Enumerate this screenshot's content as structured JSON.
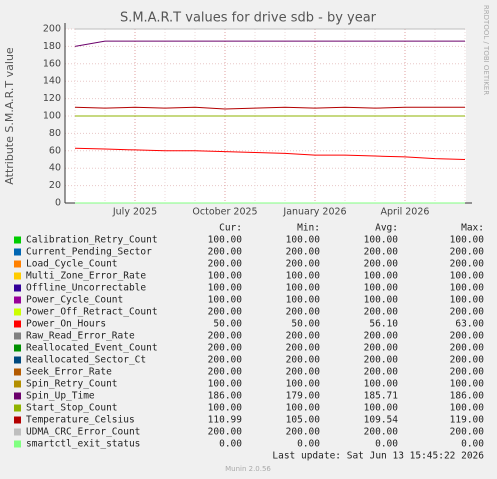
{
  "chart_data": {
    "type": "line",
    "title": "S.M.A.R.T values for drive sdb - by year",
    "y_label": "Attribute S.M.A.R.T value",
    "watermark": "RRDTOOL / TOBI OETIKER",
    "categories": [
      null,
      null,
      "July 2025",
      null,
      null,
      "October 2025",
      null,
      null,
      "January 2026",
      null,
      null,
      "April 2026",
      null,
      null
    ],
    "ylim": [
      0,
      200
    ],
    "yticks": [
      0,
      20,
      40,
      60,
      80,
      100,
      120,
      140,
      160,
      180,
      200
    ],
    "grid": true,
    "stat_headers": [
      "Cur:",
      "Min:",
      "Avg:",
      "Max:"
    ],
    "series": [
      {
        "name": "Calibration_Retry_Count",
        "color": "#00cc00",
        "values": [
          100,
          100,
          100,
          100,
          100,
          100,
          100,
          100,
          100,
          100,
          100,
          100,
          100,
          100
        ],
        "stats": [
          "100.00",
          "100.00",
          "100.00",
          "100.00"
        ]
      },
      {
        "name": "Current_Pending_Sector",
        "color": "#0066b3",
        "values": [
          200,
          200,
          200,
          200,
          200,
          200,
          200,
          200,
          200,
          200,
          200,
          200,
          200,
          200
        ],
        "stats": [
          "200.00",
          "200.00",
          "200.00",
          "200.00"
        ]
      },
      {
        "name": "Load_Cycle_Count",
        "color": "#ff8000",
        "values": [
          200,
          200,
          200,
          200,
          200,
          200,
          200,
          200,
          200,
          200,
          200,
          200,
          200,
          200
        ],
        "stats": [
          "200.00",
          "200.00",
          "200.00",
          "200.00"
        ]
      },
      {
        "name": "Multi_Zone_Error_Rate",
        "color": "#ffcc00",
        "values": [
          100,
          100,
          100,
          100,
          100,
          100,
          100,
          100,
          100,
          100,
          100,
          100,
          100,
          100
        ],
        "stats": [
          "100.00",
          "100.00",
          "100.00",
          "100.00"
        ]
      },
      {
        "name": "Offline_Uncorrectable",
        "color": "#330099",
        "values": [
          100,
          100,
          100,
          100,
          100,
          100,
          100,
          100,
          100,
          100,
          100,
          100,
          100,
          100
        ],
        "stats": [
          "100.00",
          "100.00",
          "100.00",
          "100.00"
        ]
      },
      {
        "name": "Power_Cycle_Count",
        "color": "#990099",
        "values": [
          100,
          100,
          100,
          100,
          100,
          100,
          100,
          100,
          100,
          100,
          100,
          100,
          100,
          100
        ],
        "stats": [
          "100.00",
          "100.00",
          "100.00",
          "100.00"
        ]
      },
      {
        "name": "Power_Off_Retract_Count",
        "color": "#ccff00",
        "values": [
          200,
          200,
          200,
          200,
          200,
          200,
          200,
          200,
          200,
          200,
          200,
          200,
          200,
          200
        ],
        "stats": [
          "200.00",
          "200.00",
          "200.00",
          "200.00"
        ]
      },
      {
        "name": "Power_On_Hours",
        "color": "#ff0000",
        "values": [
          63,
          62,
          61,
          60,
          60,
          59,
          58,
          57,
          55,
          55,
          54,
          53,
          51,
          50
        ],
        "stats": [
          "50.00",
          "50.00",
          "56.10",
          "63.00"
        ]
      },
      {
        "name": "Raw_Read_Error_Rate",
        "color": "#808080",
        "values": [
          200,
          200,
          200,
          200,
          200,
          200,
          200,
          200,
          200,
          200,
          200,
          200,
          200,
          200
        ],
        "stats": [
          "200.00",
          "200.00",
          "200.00",
          "200.00"
        ]
      },
      {
        "name": "Reallocated_Event_Count",
        "color": "#008f00",
        "values": [
          200,
          200,
          200,
          200,
          200,
          200,
          200,
          200,
          200,
          200,
          200,
          200,
          200,
          200
        ],
        "stats": [
          "200.00",
          "200.00",
          "200.00",
          "200.00"
        ]
      },
      {
        "name": "Reallocated_Sector_Ct",
        "color": "#00487d",
        "values": [
          200,
          200,
          200,
          200,
          200,
          200,
          200,
          200,
          200,
          200,
          200,
          200,
          200,
          200
        ],
        "stats": [
          "200.00",
          "200.00",
          "200.00",
          "200.00"
        ]
      },
      {
        "name": "Seek_Error_Rate",
        "color": "#b35a00",
        "values": [
          200,
          200,
          200,
          200,
          200,
          200,
          200,
          200,
          200,
          200,
          200,
          200,
          200,
          200
        ],
        "stats": [
          "200.00",
          "200.00",
          "200.00",
          "200.00"
        ]
      },
      {
        "name": "Spin_Retry_Count",
        "color": "#b38f00",
        "values": [
          100,
          100,
          100,
          100,
          100,
          100,
          100,
          100,
          100,
          100,
          100,
          100,
          100,
          100
        ],
        "stats": [
          "100.00",
          "100.00",
          "100.00",
          "100.00"
        ]
      },
      {
        "name": "Spin_Up_Time",
        "color": "#6b006b",
        "values": [
          180,
          186,
          186,
          186,
          186,
          186,
          186,
          186,
          186,
          186,
          186,
          186,
          186,
          186
        ],
        "stats": [
          "186.00",
          "179.00",
          "185.71",
          "186.00"
        ]
      },
      {
        "name": "Start_Stop_Count",
        "color": "#8fb300",
        "values": [
          100,
          100,
          100,
          100,
          100,
          100,
          100,
          100,
          100,
          100,
          100,
          100,
          100,
          100
        ],
        "stats": [
          "100.00",
          "100.00",
          "100.00",
          "100.00"
        ]
      },
      {
        "name": "Temperature_Celsius",
        "color": "#b30000",
        "values": [
          110,
          109,
          110,
          109,
          110,
          108,
          109,
          110,
          109,
          110,
          109,
          110,
          110,
          110
        ],
        "stats": [
          "110.99",
          "105.00",
          "109.54",
          "119.00"
        ]
      },
      {
        "name": "UDMA_CRC_Error_Count",
        "color": "#bebebe",
        "values": [
          200,
          200,
          200,
          200,
          200,
          200,
          200,
          200,
          200,
          200,
          200,
          200,
          200,
          200
        ],
        "stats": [
          "200.00",
          "200.00",
          "200.00",
          "200.00"
        ]
      },
      {
        "name": "smartctl_exit_status",
        "color": "#80ff80",
        "values": [
          0,
          0,
          0,
          0,
          0,
          0,
          0,
          0,
          0,
          0,
          0,
          0,
          0,
          0
        ],
        "stats": [
          "0.00",
          "0.00",
          "0.00",
          "0.00"
        ]
      }
    ],
    "last_update": "Last update: Sat Jun 13 15:45:22 2026",
    "footer": "Munin 2.0.56"
  }
}
